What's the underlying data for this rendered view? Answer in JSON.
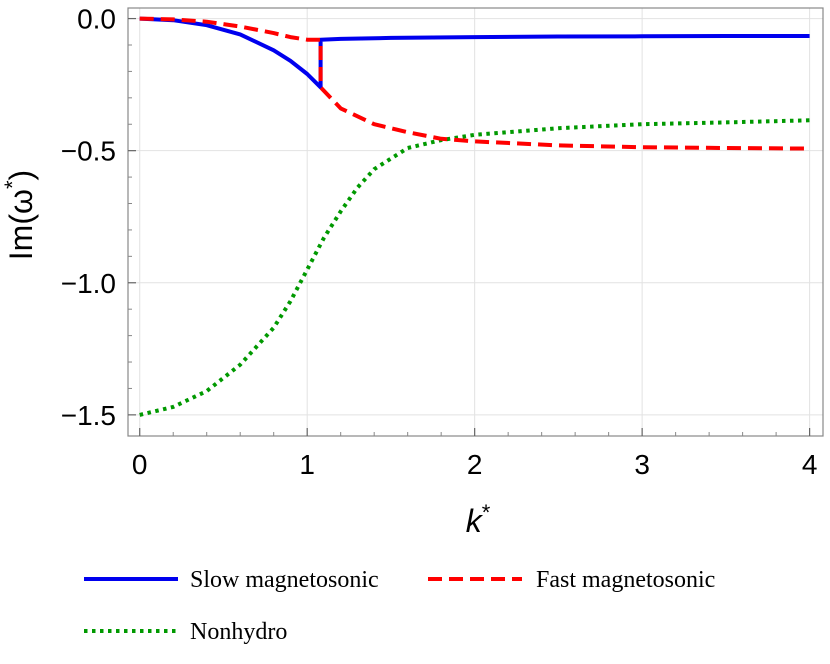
{
  "chart_data": {
    "type": "line",
    "title": "",
    "xlabel": "k",
    "xlabel_sup": "*",
    "ylabel": "Im(ω",
    "ylabel_sup": "*",
    "ylabel_close": ")",
    "xlim": [
      -0.07,
      4.08
    ],
    "ylim": [
      -1.58,
      0.04
    ],
    "xticks": [
      0,
      1,
      2,
      3,
      4
    ],
    "xtick_labels": [
      "0",
      "1",
      "2",
      "3",
      "4"
    ],
    "yticks": [
      0.0,
      -0.5,
      -1.0,
      -1.5
    ],
    "ytick_labels": [
      "0.0",
      "−0.5",
      "−1.0",
      "−1.5"
    ],
    "grid": true,
    "legend_position": "bottom",
    "series": [
      {
        "name": "Slow magnetosonic",
        "color": "#0000ee",
        "style": "solid",
        "x": [
          0,
          0.2,
          0.4,
          0.6,
          0.8,
          0.9,
          1.0,
          1.08,
          1.08,
          1.2,
          1.5,
          2.0,
          2.5,
          3.0,
          3.5,
          4.0
        ],
        "y": [
          0,
          -0.006,
          -0.025,
          -0.06,
          -0.12,
          -0.16,
          -0.21,
          -0.26,
          -0.08,
          -0.077,
          -0.073,
          -0.07,
          -0.068,
          -0.067,
          -0.066,
          -0.066
        ]
      },
      {
        "name": "Fast magnetosonic",
        "color": "#ff0000",
        "style": "dashed",
        "x": [
          0,
          0.2,
          0.4,
          0.6,
          0.8,
          0.9,
          1.0,
          1.08,
          1.08,
          1.2,
          1.4,
          1.6,
          1.8,
          2.0,
          2.5,
          3.0,
          3.5,
          4.0
        ],
        "y": [
          0,
          -0.003,
          -0.012,
          -0.03,
          -0.055,
          -0.07,
          -0.08,
          -0.08,
          -0.26,
          -0.34,
          -0.4,
          -0.43,
          -0.455,
          -0.465,
          -0.48,
          -0.487,
          -0.49,
          -0.492
        ]
      },
      {
        "name": "Nonhydro",
        "color": "#009900",
        "style": "dotted",
        "x": [
          0,
          0.2,
          0.4,
          0.6,
          0.8,
          0.9,
          1.0,
          1.1,
          1.2,
          1.3,
          1.4,
          1.6,
          1.8,
          2.0,
          2.5,
          3.0,
          3.5,
          4.0
        ],
        "y": [
          -1.5,
          -1.47,
          -1.41,
          -1.31,
          -1.17,
          -1.07,
          -0.95,
          -0.83,
          -0.73,
          -0.64,
          -0.57,
          -0.49,
          -0.46,
          -0.44,
          -0.415,
          -0.4,
          -0.393,
          -0.385
        ]
      }
    ]
  }
}
